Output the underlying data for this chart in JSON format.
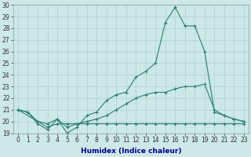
{
  "title": "",
  "xlabel": "Humidex (Indice chaleur)",
  "bg_color": "#cce8e8",
  "grid_color": "#b0d0d0",
  "line_color": "#2e7d6e",
  "xlim": [
    -0.5,
    23.5
  ],
  "ylim": [
    19,
    30
  ],
  "yticks": [
    19,
    20,
    21,
    22,
    23,
    24,
    25,
    26,
    27,
    28,
    29,
    30
  ],
  "xticks": [
    0,
    1,
    2,
    3,
    4,
    5,
    6,
    7,
    8,
    9,
    10,
    11,
    12,
    13,
    14,
    15,
    16,
    17,
    18,
    19,
    20,
    21,
    22,
    23
  ],
  "line1_x": [
    0,
    1,
    2,
    3,
    4,
    5,
    6,
    7,
    8,
    9,
    10,
    11,
    12,
    13,
    14,
    15,
    16,
    17,
    18,
    19,
    20,
    21,
    22,
    23
  ],
  "line1_y": [
    21.0,
    20.8,
    19.8,
    19.3,
    20.2,
    19.0,
    19.5,
    20.5,
    20.8,
    21.8,
    22.3,
    22.5,
    23.8,
    24.3,
    25.0,
    28.5,
    29.8,
    28.2,
    28.2,
    26.0,
    20.8,
    20.5,
    20.2,
    20.0
  ],
  "line2_x": [
    0,
    1,
    2,
    3,
    4,
    5,
    6,
    7,
    8,
    9,
    10,
    11,
    12,
    13,
    14,
    15,
    16,
    17,
    18,
    19,
    20,
    21,
    22,
    23
  ],
  "line2_y": [
    21.0,
    20.8,
    20.0,
    19.8,
    20.2,
    19.5,
    19.8,
    20.0,
    20.2,
    20.5,
    21.0,
    21.5,
    22.0,
    22.3,
    22.5,
    22.5,
    22.8,
    23.0,
    23.0,
    23.2,
    21.0,
    20.5,
    20.2,
    20.0
  ],
  "line3_x": [
    0,
    3,
    4,
    5,
    6,
    7,
    8,
    9,
    10,
    11,
    12,
    13,
    14,
    15,
    16,
    17,
    18,
    19,
    20,
    21,
    22,
    23
  ],
  "line3_y": [
    21.0,
    19.5,
    19.8,
    19.8,
    19.8,
    19.8,
    19.8,
    19.8,
    19.8,
    19.8,
    19.8,
    19.8,
    19.8,
    19.8,
    19.8,
    19.8,
    19.8,
    19.8,
    19.8,
    19.8,
    19.8,
    19.8
  ],
  "tick_fontsize": 5.5,
  "xlabel_fontsize": 6.5,
  "xlabel_color": "#00008b",
  "line_width": 0.8,
  "marker_size": 2.5
}
